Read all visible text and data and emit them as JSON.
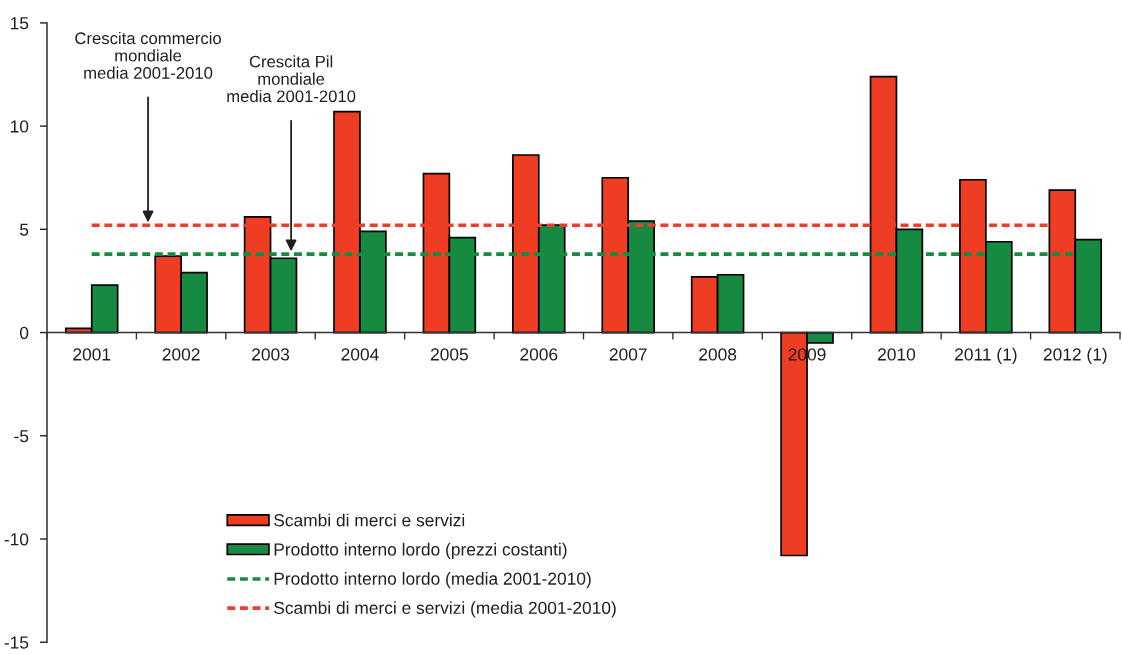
{
  "chart_data": {
    "type": "bar",
    "categories": [
      "2001",
      "2002",
      "2003",
      "2004",
      "2005",
      "2006",
      "2007",
      "2008",
      "2009",
      "2010",
      "2011 (1)",
      "2012 (1)"
    ],
    "series": [
      {
        "name": "Scambi di merci e servizi",
        "color": "#ee3d23",
        "values": [
          0.2,
          3.7,
          5.6,
          10.7,
          7.7,
          8.6,
          7.5,
          2.7,
          -10.8,
          12.4,
          7.4,
          6.9
        ]
      },
      {
        "name": "Prodotto interno lordo (prezzi costanti)",
        "color": "#178a42",
        "values": [
          2.3,
          2.9,
          3.6,
          4.9,
          4.6,
          5.2,
          5.4,
          2.8,
          -0.5,
          5.0,
          4.4,
          4.5
        ]
      }
    ],
    "ylim": [
      -15,
      15
    ],
    "yticks": [
      -15,
      -10,
      -5,
      0,
      5,
      10,
      15
    ],
    "legend": "bottom left",
    "ref_lines": [
      {
        "axis": "y",
        "value": 3.8,
        "label": "Prodotto interno lordo (media 2001-2010)",
        "color": "#1a8a40",
        "line_style": "dashed"
      },
      {
        "axis": "y",
        "value": 5.2,
        "label": "Scambi di merci e servizi (media 2001-2010)",
        "color": "#f03c28",
        "line_style": "dashed"
      }
    ],
    "annotations": [
      {
        "text": "Crescita commercio\nmondiale\nmedia 2001-2010",
        "y": 5.2
      },
      {
        "text": "Crescita Pil\nmondiale\nmedia 2001-2010",
        "y": 3.8
      }
    ]
  }
}
